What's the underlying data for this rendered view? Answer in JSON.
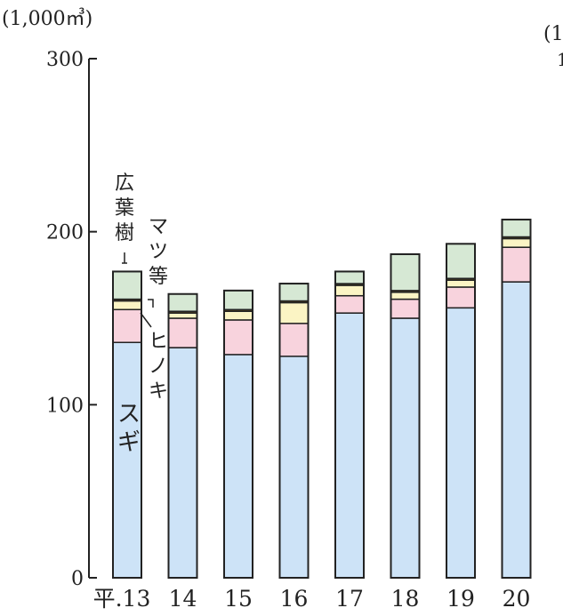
{
  "chart_data": {
    "type": "bar",
    "stacked": true,
    "unit_label": "(1,000㎥)",
    "cut_off_corner_text": [
      "(1",
      "1"
    ],
    "categories": [
      "平.13",
      "14",
      "15",
      "16",
      "17",
      "18",
      "19",
      "20"
    ],
    "ylim": [
      0,
      300
    ],
    "yticks": [
      0,
      100,
      200,
      300
    ],
    "ytick_labels": [
      "0",
      "100",
      "200",
      "300"
    ],
    "grid": false,
    "series": [
      {
        "name": "スギ",
        "color": "#cde3f7",
        "values": [
          136,
          133,
          129,
          128,
          153,
          150,
          156,
          171
        ]
      },
      {
        "name": "ヒノキ",
        "color": "#f8d3dd",
        "values": [
          19,
          17,
          20,
          19,
          10,
          11,
          12,
          20
        ]
      },
      {
        "name": "マツ等",
        "color": "#fbf4c4",
        "values": [
          5,
          3,
          5,
          12,
          6,
          4,
          4,
          5
        ]
      },
      {
        "name": "",
        "color": "#5a4a20",
        "values": [
          1,
          1,
          1,
          1,
          1,
          1,
          1,
          1
        ]
      },
      {
        "name": "広葉樹",
        "color": "#d6e8d4",
        "values": [
          16,
          10,
          11,
          10,
          7,
          21,
          20,
          10
        ]
      }
    ],
    "labels": {
      "sugi": "スギ",
      "hinoki": "ヒノキ",
      "matsu": "マツ等",
      "koyoju": "広葉樹"
    },
    "colors": {
      "axis": "#222222",
      "bar_outline": "#222222"
    }
  }
}
